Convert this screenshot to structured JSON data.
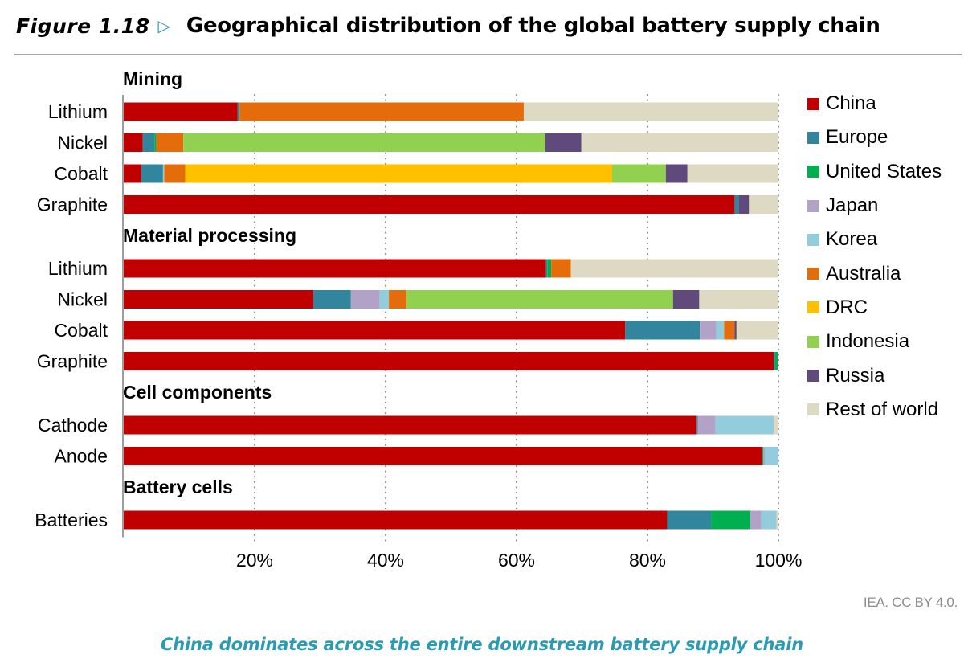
{
  "figure": {
    "number": "Figure 1.18",
    "arrow_glyph": "▷",
    "title": "Geographical distribution of the global battery supply chain",
    "credit": "IEA. CC BY 4.0.",
    "caption": "China dominates across the entire downstream battery supply chain"
  },
  "chart_data": {
    "type": "bar",
    "orientation": "horizontal",
    "stacked": true,
    "title": "Geographical distribution of the global battery supply chain",
    "xlabel": "",
    "ylabel": "",
    "xlim": [
      0,
      100
    ],
    "x_ticks": [
      "20%",
      "40%",
      "60%",
      "80%",
      "100%"
    ],
    "x_tick_values": [
      20,
      40,
      60,
      80,
      100
    ],
    "grid": "vertical dotted",
    "legend_position": "right",
    "series_names": [
      "China",
      "Europe",
      "United States",
      "Japan",
      "Korea",
      "Australia",
      "DRC",
      "Indonesia",
      "Russia",
      "Rest of world"
    ],
    "colors": [
      "#c00000",
      "#31859c",
      "#00b050",
      "#b3a2c7",
      "#93cddd",
      "#e46c0a",
      "#ffc000",
      "#92d050",
      "#604a7b",
      "#ddd9c3"
    ],
    "groups": [
      {
        "name": "Mining",
        "categories": [
          {
            "label": "Lithium",
            "values": [
              17.4,
              0.3,
              0,
              0,
              0,
              43.4,
              0,
              0,
              0,
              38.9
            ]
          },
          {
            "label": "Nickel",
            "values": [
              2.9,
              1.8,
              0.3,
              0,
              0,
              4.1,
              0,
              55.3,
              5.5,
              30.1
            ]
          },
          {
            "label": "Cobalt",
            "values": [
              2.7,
              3.3,
              0,
              0,
              0.2,
              3.2,
              65.2,
              8.2,
              3.3,
              13.9
            ]
          },
          {
            "label": "Graphite",
            "values": [
              93.3,
              0.6,
              0,
              0,
              0,
              0,
              0,
              0,
              1.6,
              4.5
            ]
          }
        ]
      },
      {
        "name": "Material processing",
        "categories": [
          {
            "label": "Lithium",
            "values": [
              64.5,
              0.2,
              0.6,
              0,
              0,
              3.0,
              0,
              0,
              0,
              31.7
            ]
          },
          {
            "label": "Nickel",
            "values": [
              29.0,
              5.7,
              0,
              4.4,
              1.4,
              2.7,
              0,
              40.7,
              4.0,
              12.1
            ]
          },
          {
            "label": "Cobalt",
            "values": [
              76.6,
              11.4,
              0,
              2.5,
              1.2,
              1.6,
              0,
              0,
              0.3,
              6.4
            ]
          },
          {
            "label": "Graphite",
            "values": [
              99.3,
              0.2,
              0.4,
              0,
              0,
              0,
              0,
              0,
              0,
              0.1
            ]
          }
        ]
      },
      {
        "name": "Cell components",
        "categories": [
          {
            "label": "Cathode",
            "values": [
              87.5,
              0.2,
              0,
              2.7,
              8.9,
              0,
              0,
              0,
              0,
              0.7
            ]
          },
          {
            "label": "Anode",
            "values": [
              97.5,
              0,
              0.2,
              0.3,
              2.0,
              0,
              0,
              0,
              0,
              0
            ]
          }
        ]
      },
      {
        "name": "Battery cells",
        "categories": [
          {
            "label": "Batteries",
            "values": [
              83.0,
              6.7,
              6.0,
              1.7,
              2.3,
              0,
              0,
              0,
              0,
              0.3
            ]
          }
        ]
      }
    ]
  },
  "legend": {
    "items": [
      {
        "label": "China",
        "color": "#c00000"
      },
      {
        "label": "Europe",
        "color": "#31859c"
      },
      {
        "label": "United States",
        "color": "#00b050"
      },
      {
        "label": "Japan",
        "color": "#b3a2c7"
      },
      {
        "label": "Korea",
        "color": "#93cddd"
      },
      {
        "label": "Australia",
        "color": "#e46c0a"
      },
      {
        "label": "DRC",
        "color": "#ffc000"
      },
      {
        "label": "Indonesia",
        "color": "#92d050"
      },
      {
        "label": "Russia",
        "color": "#604a7b"
      },
      {
        "label": "Rest of world",
        "color": "#ddd9c3"
      }
    ]
  }
}
